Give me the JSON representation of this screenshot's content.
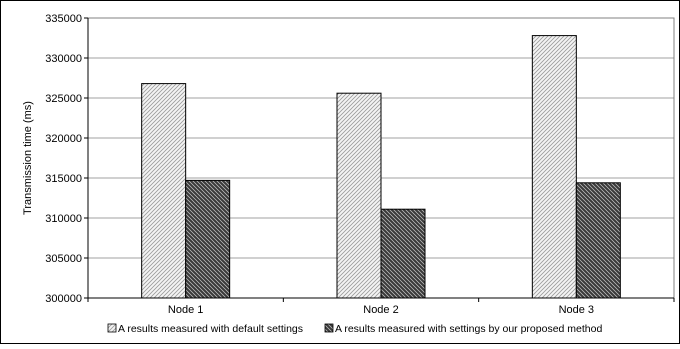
{
  "chart_data": {
    "type": "bar",
    "title": "",
    "xlabel": "",
    "ylabel": "Transmission time (ms)",
    "categories": [
      "Node 1",
      "Node 2",
      "Node 3"
    ],
    "ylim": [
      300000,
      335000
    ],
    "yticks": [
      "300000",
      "305000",
      "310000",
      "315000",
      "320000",
      "325000",
      "330000",
      "335000"
    ],
    "grid": true,
    "legend_position": "bottom",
    "series": [
      {
        "name": "A results measured with default settings",
        "values": [
          326800,
          325600,
          332800
        ],
        "color": "#e6e6e6",
        "pattern": "light diagonal hatch"
      },
      {
        "name": "A results measured with settings by our proposed method",
        "values": [
          314700,
          311100,
          314400
        ],
        "color": "#555555",
        "pattern": "dark diagonal hatch"
      }
    ]
  }
}
